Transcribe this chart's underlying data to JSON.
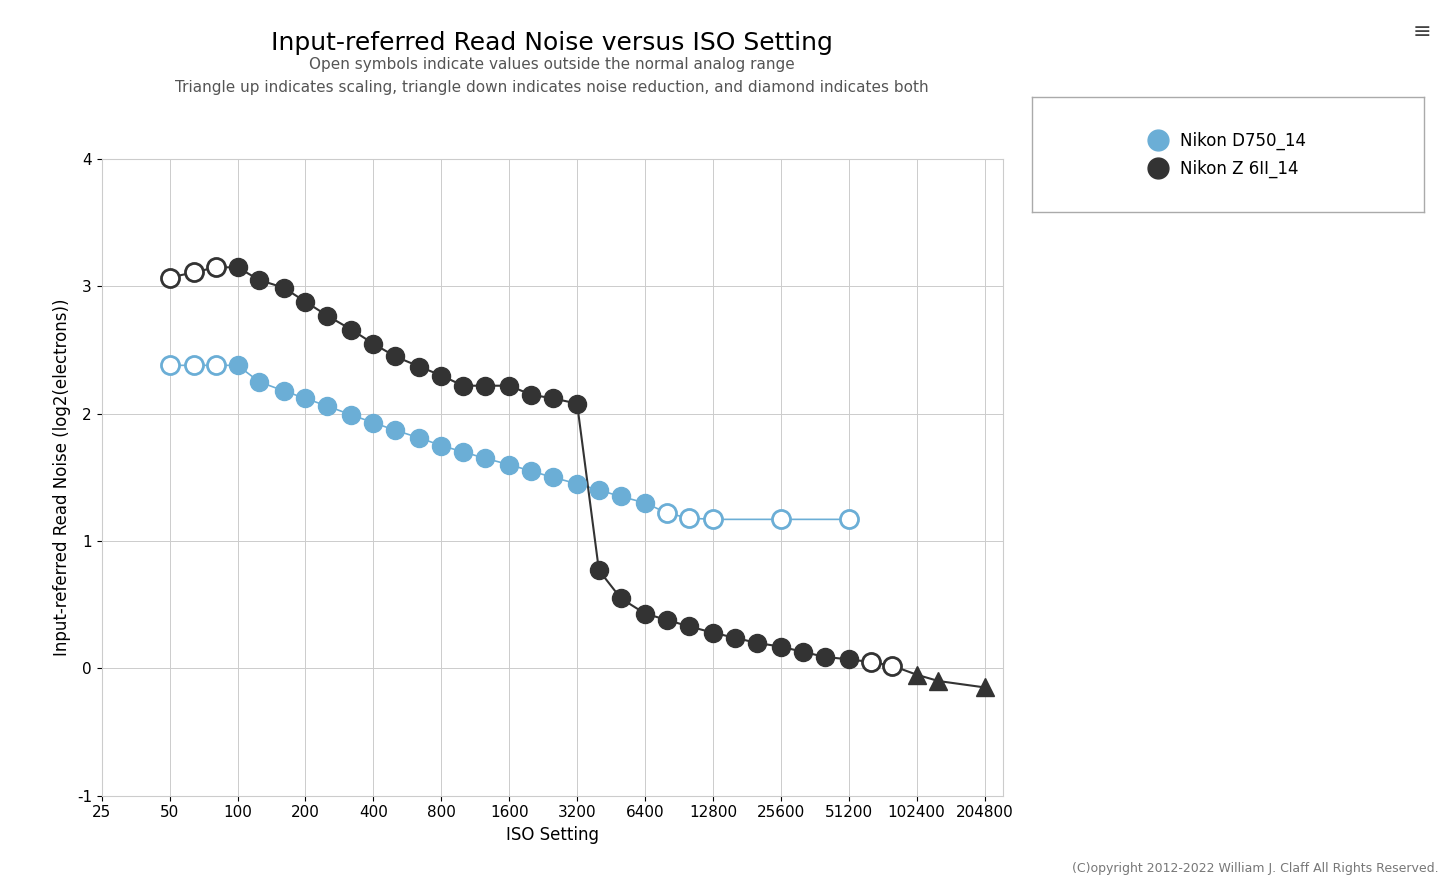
{
  "title": "Input-referred Read Noise versus ISO Setting",
  "subtitle1": "Open symbols indicate values outside the normal analog range",
  "subtitle2": "Triangle up indicates scaling, triangle down indicates noise reduction, and diamond indicates both",
  "xlabel": "ISO Setting",
  "ylabel": "Input-referred Read Noise (log2(electrons))",
  "copyright": "(C)opyright 2012-2022 William J. Claff All Rights Reserved.",
  "legend": [
    "Nikon D750_14",
    "Nikon Z 6II_14"
  ],
  "legend_colors": [
    "#6baed6",
    "#333333"
  ],
  "ylim": [
    -1,
    4
  ],
  "yticks": [
    -1,
    0,
    1,
    2,
    3,
    4
  ],
  "xtick_values": [
    25,
    50,
    100,
    200,
    400,
    800,
    1600,
    3200,
    6400,
    12800,
    25600,
    51200,
    102400,
    204800
  ],
  "xtick_labels": [
    "25",
    "50",
    "100",
    "200",
    "400",
    "800",
    "1600",
    "3200",
    "6400",
    "12800",
    "25600",
    "51200",
    "102400",
    "204800"
  ],
  "d750_iso": [
    50,
    64,
    80,
    100,
    125,
    160,
    200,
    250,
    320,
    400,
    500,
    640,
    800,
    1000,
    1250,
    1600,
    2000,
    2500,
    3200,
    4000,
    5000,
    6400,
    8000,
    10000,
    12800,
    25600,
    51200
  ],
  "d750_noise": [
    2.38,
    2.38,
    2.38,
    2.38,
    2.25,
    2.18,
    2.12,
    2.06,
    1.99,
    1.93,
    1.87,
    1.81,
    1.75,
    1.7,
    1.65,
    1.6,
    1.55,
    1.5,
    1.45,
    1.4,
    1.35,
    1.3,
    1.22,
    1.18,
    1.17,
    1.17,
    1.17
  ],
  "d750_open": [
    true,
    true,
    true,
    false,
    false,
    false,
    false,
    false,
    false,
    false,
    false,
    false,
    false,
    false,
    false,
    false,
    false,
    false,
    false,
    false,
    false,
    false,
    true,
    true,
    true,
    true,
    true
  ],
  "d750_special": [
    "o",
    "o",
    "o",
    "o",
    "o",
    "o",
    "o",
    "o",
    "o",
    "o",
    "o",
    "o",
    "o",
    "o",
    "o",
    "o",
    "o",
    "o",
    "o",
    "o",
    "o",
    "o",
    "o",
    "o",
    "o",
    "o",
    "o"
  ],
  "z6ii_iso": [
    50,
    64,
    80,
    100,
    125,
    160,
    200,
    250,
    320,
    400,
    500,
    640,
    800,
    1000,
    1250,
    1600,
    2000,
    2500,
    3200,
    4000,
    5000,
    6400,
    8000,
    10000,
    12800,
    16000,
    20000,
    25600,
    32000,
    40000,
    51200,
    64000,
    80000,
    102400,
    128000,
    204800
  ],
  "z6ii_noise": [
    3.07,
    3.11,
    3.15,
    3.15,
    3.05,
    2.99,
    2.88,
    2.77,
    2.66,
    2.55,
    2.45,
    2.37,
    2.3,
    2.22,
    2.22,
    2.22,
    2.15,
    2.12,
    2.08,
    0.77,
    0.55,
    0.43,
    0.38,
    0.33,
    0.28,
    0.24,
    0.2,
    0.17,
    0.13,
    0.09,
    0.07,
    0.05,
    0.02,
    -0.05,
    -0.1,
    -0.15
  ],
  "z6ii_open": [
    true,
    true,
    true,
    false,
    false,
    false,
    false,
    false,
    false,
    false,
    false,
    false,
    false,
    false,
    false,
    false,
    false,
    false,
    false,
    false,
    false,
    false,
    false,
    false,
    false,
    false,
    false,
    false,
    false,
    false,
    false,
    true,
    true,
    false,
    false,
    false
  ],
  "z6ii_special": [
    "o",
    "o",
    "o",
    "o",
    "o",
    "o",
    "o",
    "o",
    "o",
    "o",
    "o",
    "o",
    "o",
    "o",
    "o",
    "o",
    "o",
    "o",
    "o",
    "o",
    "o",
    "o",
    "o",
    "o",
    "o",
    "o",
    "o",
    "o",
    "o",
    "o",
    "o",
    "o",
    "o",
    "^",
    "^",
    "^"
  ],
  "blue_color": "#6baed6",
  "dark_color": "#333333",
  "title_fontsize": 18,
  "subtitle_fontsize": 11,
  "axis_label_fontsize": 12,
  "tick_fontsize": 11,
  "marker_size": 13
}
